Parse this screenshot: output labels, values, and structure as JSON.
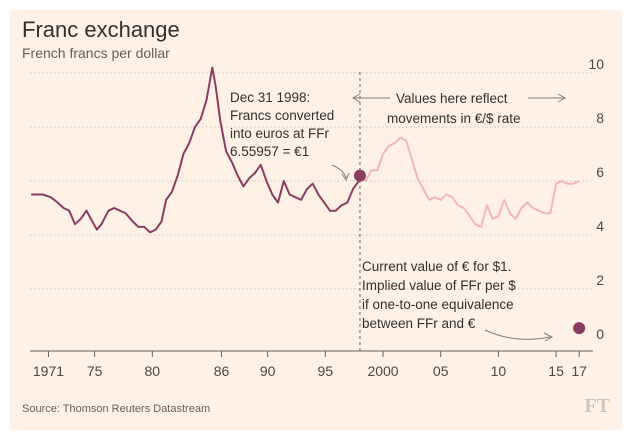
{
  "chart_data": {
    "type": "line",
    "title": "Franc exchange",
    "subtitle": "French francs per dollar",
    "ylim": [
      0,
      10
    ],
    "y_ticks": [
      "0",
      "2",
      "4",
      "6",
      "8",
      "10"
    ],
    "xlim": [
      1969.4,
      2018.2
    ],
    "x_ticks": [
      {
        "x": 1971,
        "label": "1971"
      },
      {
        "x": 1975,
        "label": "75"
      },
      {
        "x": 1980,
        "label": "80"
      },
      {
        "x": 1986,
        "label": "86"
      },
      {
        "x": 1990,
        "label": "90"
      },
      {
        "x": 1995,
        "label": "95"
      },
      {
        "x": 2000,
        "label": "2000"
      },
      {
        "x": 2005,
        "label": "05"
      },
      {
        "x": 2010,
        "label": "10"
      },
      {
        "x": 2015,
        "label": "15"
      },
      {
        "x": 2017,
        "label": "17"
      }
    ],
    "grid": true,
    "conversion_year": 1998.0,
    "series": [
      {
        "color": "#8a3d62",
        "points": [
          [
            1969.5,
            5.5
          ],
          [
            1970.5,
            5.5
          ],
          [
            1971.2,
            5.4
          ],
          [
            1971.8,
            5.2
          ],
          [
            1972.3,
            5.0
          ],
          [
            1972.8,
            4.9
          ],
          [
            1973.3,
            4.4
          ],
          [
            1973.8,
            4.6
          ],
          [
            1974.3,
            4.9
          ],
          [
            1974.8,
            4.5
          ],
          [
            1975.2,
            4.2
          ],
          [
            1975.6,
            4.4
          ],
          [
            1976.2,
            4.9
          ],
          [
            1976.7,
            5.0
          ],
          [
            1977.2,
            4.9
          ],
          [
            1977.7,
            4.8
          ],
          [
            1978.3,
            4.5
          ],
          [
            1978.8,
            4.3
          ],
          [
            1979.3,
            4.3
          ],
          [
            1979.8,
            4.1
          ],
          [
            1980.3,
            4.2
          ],
          [
            1980.8,
            4.5
          ],
          [
            1981.2,
            5.3
          ],
          [
            1981.7,
            5.6
          ],
          [
            1982.2,
            6.2
          ],
          [
            1982.7,
            7.0
          ],
          [
            1983.2,
            7.4
          ],
          [
            1983.7,
            8.0
          ],
          [
            1984.2,
            8.3
          ],
          [
            1984.7,
            9.0
          ],
          [
            1985.2,
            10.2
          ],
          [
            1985.5,
            9.5
          ],
          [
            1985.9,
            8.2
          ],
          [
            1986.4,
            7.1
          ],
          [
            1986.9,
            6.7
          ],
          [
            1987.4,
            6.2
          ],
          [
            1987.9,
            5.8
          ],
          [
            1988.4,
            6.1
          ],
          [
            1988.9,
            6.3
          ],
          [
            1989.4,
            6.6
          ],
          [
            1989.9,
            6.0
          ],
          [
            1990.4,
            5.5
          ],
          [
            1990.9,
            5.2
          ],
          [
            1991.4,
            6.0
          ],
          [
            1991.9,
            5.5
          ],
          [
            1992.4,
            5.4
          ],
          [
            1992.9,
            5.3
          ],
          [
            1993.4,
            5.7
          ],
          [
            1993.9,
            5.9
          ],
          [
            1994.4,
            5.5
          ],
          [
            1994.9,
            5.2
          ],
          [
            1995.4,
            4.9
          ],
          [
            1995.9,
            4.9
          ],
          [
            1996.4,
            5.1
          ],
          [
            1996.9,
            5.2
          ],
          [
            1997.4,
            5.7
          ],
          [
            1997.9,
            6.0
          ],
          [
            1998.0,
            6.2
          ]
        ]
      },
      {
        "color": "#f2b5c0",
        "points": [
          [
            1998.0,
            6.2
          ],
          [
            1998.5,
            6.0
          ],
          [
            1999.0,
            6.4
          ],
          [
            1999.5,
            6.4
          ],
          [
            2000.0,
            7.0
          ],
          [
            2000.5,
            7.3
          ],
          [
            2001.0,
            7.4
          ],
          [
            2001.5,
            7.6
          ],
          [
            2002.0,
            7.5
          ],
          [
            2002.5,
            6.8
          ],
          [
            2003.0,
            6.1
          ],
          [
            2003.5,
            5.7
          ],
          [
            2004.0,
            5.3
          ],
          [
            2004.5,
            5.4
          ],
          [
            2005.0,
            5.3
          ],
          [
            2005.5,
            5.5
          ],
          [
            2006.0,
            5.4
          ],
          [
            2006.5,
            5.1
          ],
          [
            2007.0,
            5.0
          ],
          [
            2007.5,
            4.7
          ],
          [
            2008.0,
            4.4
          ],
          [
            2008.5,
            4.3
          ],
          [
            2009.0,
            5.1
          ],
          [
            2009.5,
            4.6
          ],
          [
            2010.0,
            4.7
          ],
          [
            2010.5,
            5.3
          ],
          [
            2011.0,
            4.8
          ],
          [
            2011.5,
            4.6
          ],
          [
            2012.0,
            5.0
          ],
          [
            2012.5,
            5.2
          ],
          [
            2013.0,
            5.0
          ],
          [
            2013.5,
            4.9
          ],
          [
            2014.0,
            4.8
          ],
          [
            2014.5,
            4.8
          ],
          [
            2015.0,
            5.9
          ],
          [
            2015.5,
            6.0
          ],
          [
            2016.0,
            5.9
          ],
          [
            2016.5,
            5.9
          ],
          [
            2017.0,
            6.0
          ]
        ]
      }
    ],
    "markers": [
      {
        "x": 1998.0,
        "y": 6.2
      },
      {
        "x": 2017.0,
        "y": 0.55
      }
    ],
    "annotations": {
      "conversion": [
        "Dec 31 1998:",
        "Francs converted",
        "into euros at FFr",
        "6.55957 = €1"
      ],
      "reflect": [
        "Values here reflect",
        "movements in €/$ rate"
      ],
      "current": [
        "Current value of € for $1.",
        "Implied value of FFr per $",
        "if one-to-one equivalence",
        "between FFr and €"
      ]
    }
  },
  "footer": {
    "source": "Source: Thomson Reuters Datastream",
    "logo": "FT"
  },
  "colors": {
    "background": "#fff1e5",
    "franc_line": "#8a3d62",
    "euro_line": "#f2b5c0",
    "marker": "#8a3d62",
    "grid": "#ccc1b7",
    "text": "#33302e"
  }
}
